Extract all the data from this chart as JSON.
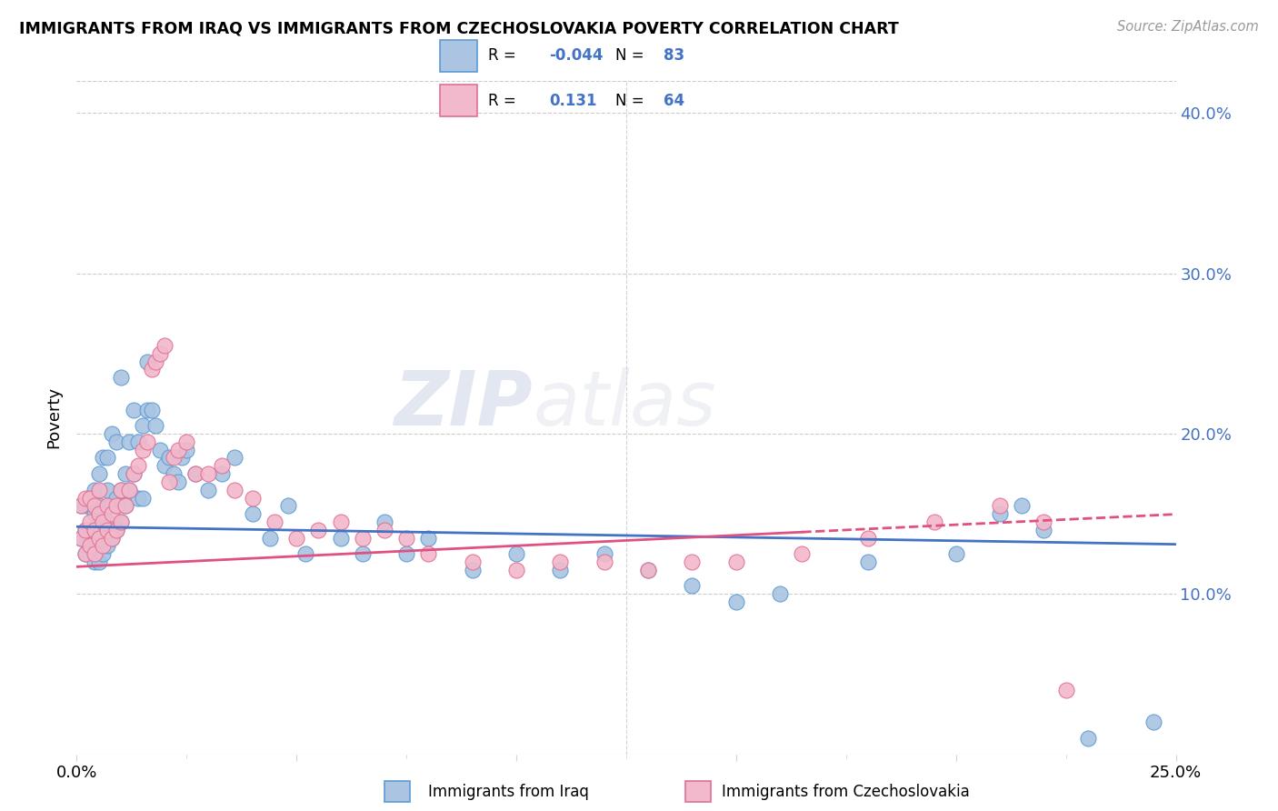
{
  "title": "IMMIGRANTS FROM IRAQ VS IMMIGRANTS FROM CZECHOSLOVAKIA POVERTY CORRELATION CHART",
  "source": "Source: ZipAtlas.com",
  "ylabel": "Poverty",
  "ytick_vals": [
    0.1,
    0.2,
    0.3,
    0.4
  ],
  "ytick_labels": [
    "10.0%",
    "20.0%",
    "30.0%",
    "40.0%"
  ],
  "xlim": [
    0.0,
    0.25
  ],
  "ylim": [
    0.0,
    0.42
  ],
  "legend_iraq_r": "-0.044",
  "legend_iraq_n": "83",
  "legend_czech_r": "0.131",
  "legend_czech_n": "64",
  "legend_label_iraq": "Immigrants from Iraq",
  "legend_label_czech": "Immigrants from Czechoslovakia",
  "iraq_color": "#aac4e2",
  "iraq_color_edge": "#5b9bd5",
  "czech_color": "#f2b8cb",
  "czech_color_edge": "#e07090",
  "trendline_iraq_color": "#4472c4",
  "trendline_czech_color": "#e05080",
  "watermark_zip": "ZIP",
  "watermark_atlas": "atlas",
  "iraq_x": [
    0.001,
    0.001,
    0.002,
    0.002,
    0.002,
    0.003,
    0.003,
    0.003,
    0.003,
    0.004,
    0.004,
    0.004,
    0.004,
    0.005,
    0.005,
    0.005,
    0.005,
    0.006,
    0.006,
    0.006,
    0.006,
    0.007,
    0.007,
    0.007,
    0.007,
    0.008,
    0.008,
    0.008,
    0.009,
    0.009,
    0.009,
    0.01,
    0.01,
    0.01,
    0.011,
    0.011,
    0.012,
    0.012,
    0.013,
    0.013,
    0.014,
    0.014,
    0.015,
    0.015,
    0.016,
    0.016,
    0.017,
    0.018,
    0.019,
    0.02,
    0.021,
    0.022,
    0.023,
    0.024,
    0.025,
    0.027,
    0.03,
    0.033,
    0.036,
    0.04,
    0.044,
    0.048,
    0.052,
    0.06,
    0.065,
    0.07,
    0.075,
    0.08,
    0.09,
    0.1,
    0.11,
    0.12,
    0.13,
    0.14,
    0.15,
    0.16,
    0.18,
    0.2,
    0.21,
    0.215,
    0.22,
    0.23,
    0.245
  ],
  "iraq_y": [
    0.135,
    0.155,
    0.14,
    0.155,
    0.125,
    0.13,
    0.14,
    0.155,
    0.16,
    0.12,
    0.135,
    0.15,
    0.165,
    0.12,
    0.14,
    0.155,
    0.175,
    0.125,
    0.135,
    0.15,
    0.185,
    0.13,
    0.145,
    0.165,
    0.185,
    0.135,
    0.155,
    0.2,
    0.14,
    0.16,
    0.195,
    0.145,
    0.165,
    0.235,
    0.155,
    0.175,
    0.165,
    0.195,
    0.175,
    0.215,
    0.16,
    0.195,
    0.16,
    0.205,
    0.215,
    0.245,
    0.215,
    0.205,
    0.19,
    0.18,
    0.185,
    0.175,
    0.17,
    0.185,
    0.19,
    0.175,
    0.165,
    0.175,
    0.185,
    0.15,
    0.135,
    0.155,
    0.125,
    0.135,
    0.125,
    0.145,
    0.125,
    0.135,
    0.115,
    0.125,
    0.115,
    0.125,
    0.115,
    0.105,
    0.095,
    0.1,
    0.12,
    0.125,
    0.15,
    0.155,
    0.14,
    0.01,
    0.02
  ],
  "czech_x": [
    0.001,
    0.001,
    0.002,
    0.002,
    0.002,
    0.003,
    0.003,
    0.003,
    0.004,
    0.004,
    0.004,
    0.005,
    0.005,
    0.005,
    0.006,
    0.006,
    0.007,
    0.007,
    0.008,
    0.008,
    0.009,
    0.009,
    0.01,
    0.01,
    0.011,
    0.012,
    0.013,
    0.014,
    0.015,
    0.016,
    0.017,
    0.018,
    0.019,
    0.02,
    0.021,
    0.022,
    0.023,
    0.025,
    0.027,
    0.03,
    0.033,
    0.036,
    0.04,
    0.045,
    0.05,
    0.055,
    0.06,
    0.065,
    0.07,
    0.075,
    0.08,
    0.09,
    0.1,
    0.11,
    0.12,
    0.13,
    0.14,
    0.15,
    0.165,
    0.18,
    0.195,
    0.21,
    0.22,
    0.225
  ],
  "czech_y": [
    0.135,
    0.155,
    0.125,
    0.14,
    0.16,
    0.13,
    0.145,
    0.16,
    0.125,
    0.14,
    0.155,
    0.135,
    0.15,
    0.165,
    0.13,
    0.145,
    0.14,
    0.155,
    0.135,
    0.15,
    0.14,
    0.155,
    0.145,
    0.165,
    0.155,
    0.165,
    0.175,
    0.18,
    0.19,
    0.195,
    0.24,
    0.245,
    0.25,
    0.255,
    0.17,
    0.185,
    0.19,
    0.195,
    0.175,
    0.175,
    0.18,
    0.165,
    0.16,
    0.145,
    0.135,
    0.14,
    0.145,
    0.135,
    0.14,
    0.135,
    0.125,
    0.12,
    0.115,
    0.12,
    0.12,
    0.115,
    0.12,
    0.12,
    0.125,
    0.135,
    0.145,
    0.155,
    0.145,
    0.04
  ]
}
